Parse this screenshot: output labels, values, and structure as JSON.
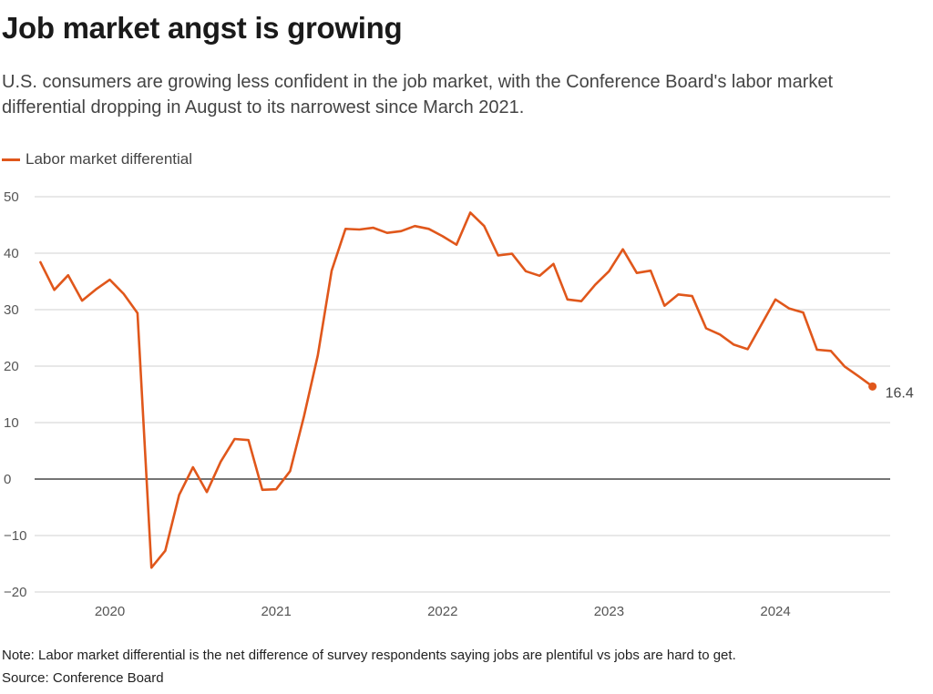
{
  "title": "Job market angst is growing",
  "subtitle": "U.S. consumers are growing less confident in the job market, with the Conference Board's labor market differential dropping in August to its narrowest since March 2021.",
  "note": "Note: Labor market differential is the net difference of survey respondents saying jobs are plentiful vs jobs are hard to get.",
  "source": "Source: Conference Board",
  "colors": {
    "series": "#e0571b",
    "grid": "#d0d0d0",
    "zero_line": "#222222"
  },
  "chart_data": {
    "type": "line",
    "grid": true,
    "legend": "top-left",
    "ylim": [
      -20,
      50
    ],
    "yticks": [
      50,
      40,
      30,
      20,
      10,
      0,
      -10,
      -20
    ],
    "ytick_labels": [
      "50",
      "40",
      "30",
      "20",
      "10",
      "0",
      "−10",
      "−20"
    ],
    "xlim": [
      "2019-08",
      "2024-10"
    ],
    "xticks": [
      "2020",
      "2021",
      "2022",
      "2023",
      "2024"
    ],
    "end_label": "16.4",
    "series": [
      {
        "name": "Labor market differential",
        "x": [
          "2019-08",
          "2019-09",
          "2019-10",
          "2019-11",
          "2019-12",
          "2020-01",
          "2020-02",
          "2020-03",
          "2020-04",
          "2020-05",
          "2020-06",
          "2020-07",
          "2020-08",
          "2020-09",
          "2020-10",
          "2020-11",
          "2020-12",
          "2021-01",
          "2021-02",
          "2021-03",
          "2021-04",
          "2021-05",
          "2021-06",
          "2021-07",
          "2021-08",
          "2021-09",
          "2021-10",
          "2021-11",
          "2021-12",
          "2022-01",
          "2022-02",
          "2022-03",
          "2022-04",
          "2022-05",
          "2022-06",
          "2022-07",
          "2022-08",
          "2022-09",
          "2022-10",
          "2022-11",
          "2022-12",
          "2023-01",
          "2023-02",
          "2023-03",
          "2023-04",
          "2023-05",
          "2023-06",
          "2023-07",
          "2023-08",
          "2023-09",
          "2023-10",
          "2023-11",
          "2023-12",
          "2024-01",
          "2024-02",
          "2024-03",
          "2024-04",
          "2024-05",
          "2024-06",
          "2024-07",
          "2024-08"
        ],
        "values": [
          38.4,
          33.5,
          36.1,
          31.6,
          33.6,
          35.3,
          32.8,
          29.4,
          -15.7,
          -12.7,
          -2.8,
          2.1,
          -2.3,
          3.1,
          7.1,
          6.9,
          -1.9,
          -1.8,
          1.4,
          11.1,
          21.9,
          36.9,
          44.3,
          44.2,
          44.5,
          43.6,
          43.9,
          44.8,
          44.3,
          43.0,
          41.5,
          47.2,
          44.8,
          39.6,
          39.9,
          36.8,
          36.0,
          38.1,
          31.8,
          31.5,
          34.4,
          36.8,
          40.7,
          36.5,
          36.9,
          30.7,
          32.7,
          32.4,
          26.7,
          25.6,
          23.8,
          23.0,
          27.4,
          31.8,
          30.2,
          29.5,
          22.9,
          22.7,
          19.9,
          18.2,
          16.4
        ]
      }
    ]
  }
}
